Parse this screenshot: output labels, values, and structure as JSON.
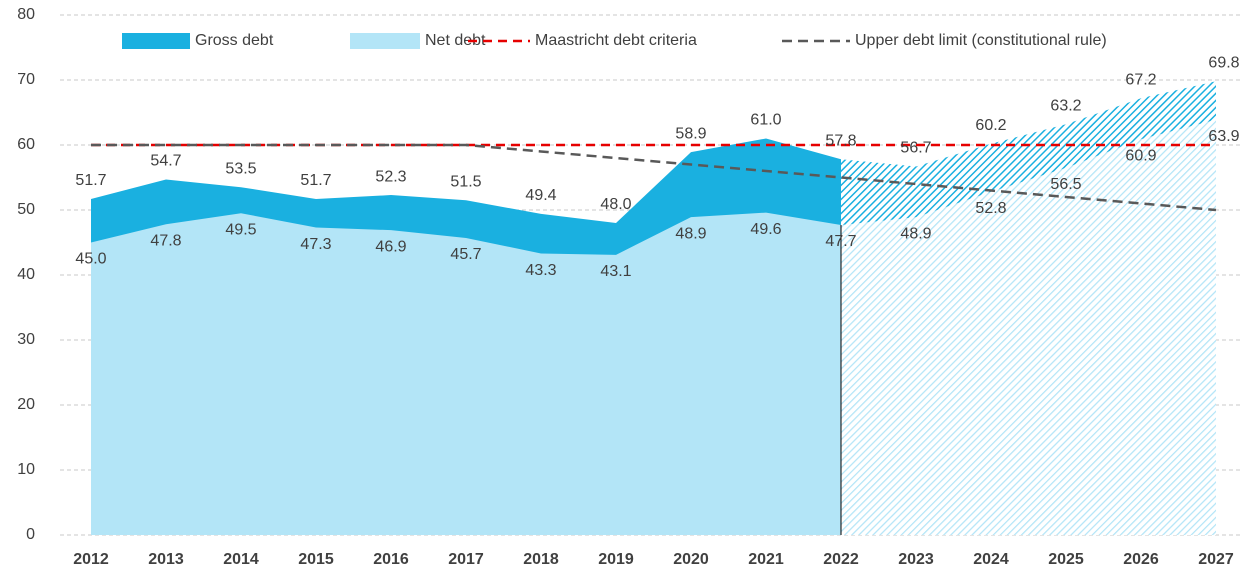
{
  "chart_data": {
    "type": "area",
    "categories": [
      "2012",
      "2013",
      "2014",
      "2015",
      "2016",
      "2017",
      "2018",
      "2019",
      "2020",
      "2021",
      "2022",
      "2023",
      "2024",
      "2025",
      "2026",
      "2027"
    ],
    "series": [
      {
        "name": "Gross debt",
        "color": "#1ab0e0",
        "values": [
          51.7,
          54.7,
          53.5,
          51.7,
          52.3,
          51.5,
          49.4,
          48.0,
          58.9,
          61.0,
          57.8,
          56.7,
          60.2,
          63.2,
          67.2,
          69.8
        ],
        "value_labels": [
          "51.7",
          "54.7",
          "53.5",
          "51.7",
          "52.3",
          "51.5",
          "49.4",
          "48.0",
          "58.9",
          "61.0",
          "57.8",
          "56.7",
          "60.2",
          "63.2",
          "67.2",
          "69.8"
        ]
      },
      {
        "name": "Net debt",
        "color": "#b3e5f7",
        "values": [
          45.0,
          47.8,
          49.5,
          47.3,
          46.9,
          45.7,
          43.3,
          43.1,
          48.9,
          49.6,
          47.7,
          48.9,
          52.8,
          56.5,
          60.9,
          63.9
        ],
        "value_labels": [
          "45.0",
          "47.8",
          "49.5",
          "47.3",
          "46.9",
          "45.7",
          "43.3",
          "43.1",
          "48.9",
          "49.6",
          "47.7",
          "48.9",
          "52.8",
          "56.5",
          "60.9",
          "63.9"
        ]
      }
    ],
    "lines": [
      {
        "name": "Maastricht debt criteria",
        "color": "#e60000",
        "values": [
          60,
          60,
          60,
          60,
          60,
          60,
          60,
          60,
          60,
          60,
          60,
          60,
          60,
          60,
          60,
          60
        ]
      },
      {
        "name": "Upper debt limit (constitutional rule)",
        "color": "#595959",
        "values": [
          60,
          60,
          60,
          60,
          60,
          60,
          59,
          58,
          57,
          56,
          55,
          54,
          53,
          52,
          51,
          50
        ]
      }
    ],
    "hatch_from": "2022",
    "ylim": [
      0,
      80
    ],
    "yticks": [
      0,
      10,
      20,
      30,
      40,
      50,
      60,
      70,
      80
    ],
    "grid": true
  }
}
